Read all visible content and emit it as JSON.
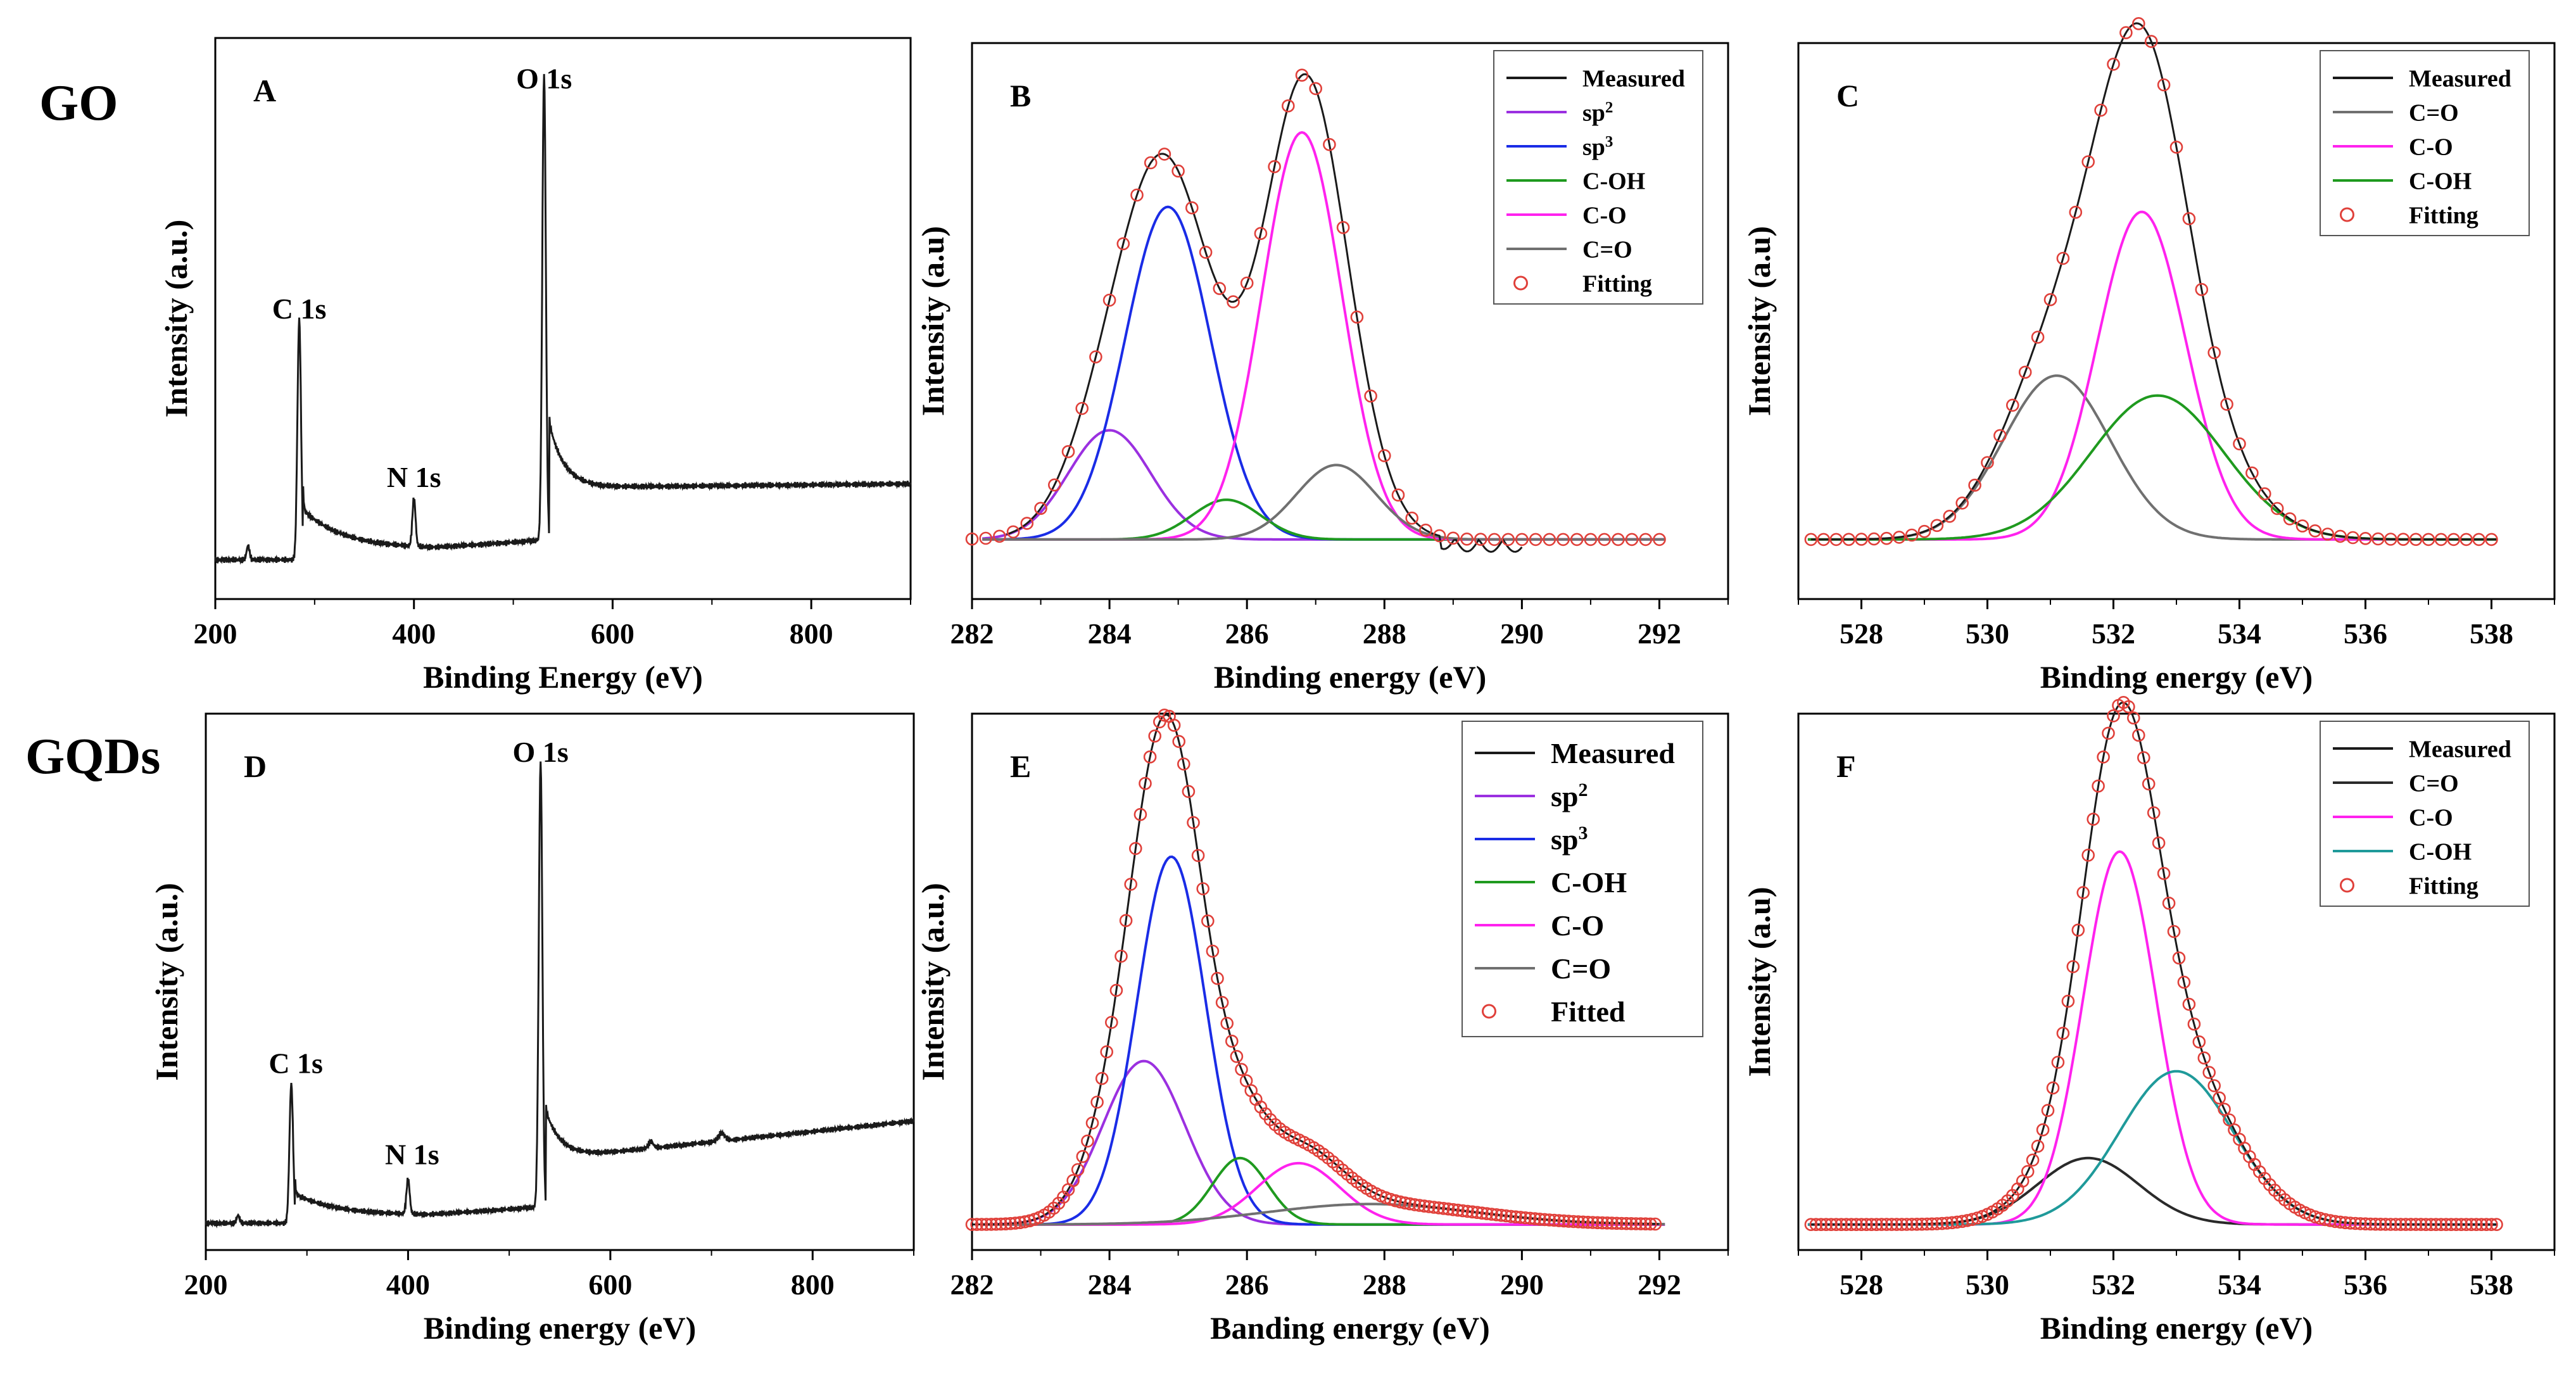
{
  "row_labels": {
    "go": "GO",
    "gqds": "GQDs"
  },
  "colors": {
    "measured": "#1a1a1a",
    "sp2": "#9b30e0",
    "sp3": "#1a2ce6",
    "coh": "#1f9a1f",
    "co": "#ff22ee",
    "c_double_o": "#707070",
    "c_double_o_f": "#2a2a2a",
    "coh_f": "#1f9a9a",
    "fitting": "#e0403a"
  },
  "chart_data": [
    {
      "id": "A",
      "type": "line",
      "panel_letter": "A",
      "title": "",
      "xlabel": "Binding Energy (eV)",
      "ylabel": "Intensity (a.u.)",
      "xlim": [
        200,
        900
      ],
      "ylim": [
        0,
        100
      ],
      "xticks": [
        200,
        400,
        600,
        800
      ],
      "peaks": [
        {
          "x": 233,
          "h": 2.5,
          "w": 1.5
        },
        {
          "x": 284.5,
          "h": 43,
          "w": 1.8
        },
        {
          "x": 400,
          "h": 8.5,
          "w": 1.6
        },
        {
          "x": 531,
          "h": 83,
          "w": 1.8
        }
      ],
      "peak_labels": [
        {
          "text": "C 1s",
          "x": 284.5,
          "y": 50
        },
        {
          "text": "N 1s",
          "x": 400,
          "y": 20
        },
        {
          "text": "O 1s",
          "x": 531,
          "y": 91
        }
      ],
      "legend": null
    },
    {
      "id": "B",
      "type": "line",
      "panel_letter": "B",
      "title": "",
      "xlabel": "Binding energy (eV)",
      "ylabel": "Intensity (a.u)",
      "xlim": [
        282,
        293
      ],
      "ylim": [
        -12,
        100
      ],
      "xticks": [
        282,
        284,
        286,
        288,
        290,
        292
      ],
      "series": [
        {
          "name": "sp2",
          "legend_main": "sp",
          "legend_sup": "2",
          "color_key": "sp2",
          "center": 284.0,
          "height": 22,
          "sigma": 0.6
        },
        {
          "name": "sp3",
          "legend_main": "sp",
          "legend_sup": "3",
          "color_key": "sp3",
          "center": 284.85,
          "height": 67,
          "sigma": 0.62
        },
        {
          "name": "C-OH",
          "legend_main": "C-OH",
          "legend_sup": "",
          "color_key": "coh",
          "center": 285.7,
          "height": 8,
          "sigma": 0.5
        },
        {
          "name": "C-O",
          "legend_main": "C-O",
          "legend_sup": "",
          "color_key": "co",
          "center": 286.8,
          "height": 82,
          "sigma": 0.58
        },
        {
          "name": "C=O",
          "legend_main": "C=O",
          "legend_sup": "",
          "color_key": "c_double_o",
          "center": 287.3,
          "height": 15,
          "sigma": 0.58
        }
      ],
      "measured_label": "Measured",
      "fit_label": "Fitting",
      "fit_range": [
        282,
        292
      ],
      "fit_step": 0.2,
      "measured_range": [
        282.5,
        290
      ],
      "legend": {
        "position": "top-right",
        "order": [
          "Measured",
          "sp2",
          "sp3",
          "C-OH",
          "C-O",
          "C=O",
          "Fitting"
        ]
      }
    },
    {
      "id": "C",
      "type": "line",
      "panel_letter": "C",
      "title": "",
      "xlabel": "Binding energy (eV)",
      "ylabel": "Intensity (a.u)",
      "xlim": [
        527,
        539
      ],
      "ylim": [
        -12,
        100
      ],
      "xticks": [
        528,
        530,
        532,
        534,
        536,
        538
      ],
      "series": [
        {
          "name": "C=O",
          "legend_main": "C=O",
          "legend_sup": "",
          "color_key": "c_double_o",
          "center": 531.1,
          "height": 33,
          "sigma": 0.85
        },
        {
          "name": "C-O",
          "legend_main": "C-O",
          "legend_sup": "",
          "color_key": "co",
          "center": 532.45,
          "height": 66,
          "sigma": 0.7
        },
        {
          "name": "C-OH",
          "legend_main": "C-OH",
          "legend_sup": "",
          "color_key": "coh",
          "center": 532.7,
          "height": 29,
          "sigma": 1.05
        }
      ],
      "measured_label": "Measured",
      "fit_label": "Fitting",
      "fit_range": [
        527.2,
        538.1
      ],
      "fit_step": 0.2,
      "measured_range": [
        527.2,
        538.1
      ],
      "legend": {
        "position": "top-right",
        "order": [
          "Measured",
          "C=O",
          "C-O",
          "C-OH",
          "Fitting"
        ]
      }
    },
    {
      "id": "D",
      "type": "line",
      "panel_letter": "D",
      "title": "",
      "xlabel": "Binding energy (eV)",
      "ylabel": "Intensity (a.u.)",
      "xlim": [
        200,
        900
      ],
      "ylim": [
        0,
        100
      ],
      "xticks": [
        200,
        400,
        600,
        800
      ],
      "peaks": [
        {
          "x": 232,
          "h": 1.5,
          "w": 1.5
        },
        {
          "x": 284.5,
          "h": 26,
          "w": 1.8
        },
        {
          "x": 400,
          "h": 6.5,
          "w": 1.6
        },
        {
          "x": 531,
          "h": 83,
          "w": 1.8
        }
      ],
      "peak_labels": [
        {
          "text": "C 1s",
          "x": 289,
          "y": 33
        },
        {
          "text": "N 1s",
          "x": 404,
          "y": 16
        },
        {
          "text": "O 1s",
          "x": 531,
          "y": 91
        }
      ],
      "legend": null
    },
    {
      "id": "E",
      "type": "line",
      "panel_letter": "E",
      "title": "",
      "xlabel": "Banding energy (eV)",
      "ylabel": "Intensity (a.u.)",
      "xlim": [
        282,
        293
      ],
      "ylim": [
        -5,
        100
      ],
      "xticks": [
        282,
        284,
        286,
        288,
        290,
        292
      ],
      "series": [
        {
          "name": "sp2",
          "legend_main": "sp",
          "legend_sup": "2",
          "color_key": "sp2",
          "center": 284.5,
          "height": 32,
          "sigma": 0.6
        },
        {
          "name": "sp3",
          "legend_main": "sp",
          "legend_sup": "3",
          "color_key": "sp3",
          "center": 284.9,
          "height": 72,
          "sigma": 0.5
        },
        {
          "name": "C-OH",
          "legend_main": "C-OH",
          "legend_sup": "",
          "color_key": "coh",
          "center": 285.9,
          "height": 13,
          "sigma": 0.4
        },
        {
          "name": "C-O",
          "legend_main": "C-O",
          "legend_sup": "",
          "color_key": "co",
          "center": 286.75,
          "height": 12,
          "sigma": 0.6
        },
        {
          "name": "C=O",
          "legend_main": "C=O",
          "legend_sup": "",
          "color_key": "c_double_o",
          "center": 287.8,
          "height": 4,
          "sigma": 1.5
        }
      ],
      "measured_label": "Measured",
      "fit_label": "Fitted",
      "fit_range": [
        282,
        292
      ],
      "fit_step": 0.07,
      "measured_range": [
        282,
        292
      ],
      "legend": {
        "position": "top-right",
        "order": [
          "Measured",
          "sp2",
          "sp3",
          "C-OH",
          "C-O",
          "C=O",
          "Fitted"
        ]
      }
    },
    {
      "id": "F",
      "type": "line",
      "panel_letter": "F",
      "title": "",
      "xlabel": "Binding energy (eV)",
      "ylabel": "Intensity (a.u)",
      "xlim": [
        527,
        539
      ],
      "ylim": [
        -5,
        100
      ],
      "xticks": [
        528,
        530,
        532,
        534,
        536,
        538
      ],
      "series": [
        {
          "name": "C=O",
          "legend_main": "C=O",
          "legend_sup": "",
          "color_key": "c_double_o_f",
          "center": 531.6,
          "height": 13,
          "sigma": 0.8
        },
        {
          "name": "C-O",
          "legend_main": "C-O",
          "legend_sup": "",
          "color_key": "co",
          "center": 532.1,
          "height": 73,
          "sigma": 0.58
        },
        {
          "name": "C-OH",
          "legend_main": "C-OH",
          "legend_sup": "",
          "color_key": "coh_f",
          "center": 533.0,
          "height": 30,
          "sigma": 0.9
        }
      ],
      "measured_label": "Measured",
      "fit_label": "Fitting",
      "fit_range": [
        527.2,
        538.1
      ],
      "fit_step": 0.08,
      "measured_range": [
        527.2,
        538.1
      ],
      "legend": {
        "position": "top-right",
        "order": [
          "Measured",
          "C=O",
          "C-O",
          "C-OH",
          "Fitting"
        ]
      }
    }
  ]
}
